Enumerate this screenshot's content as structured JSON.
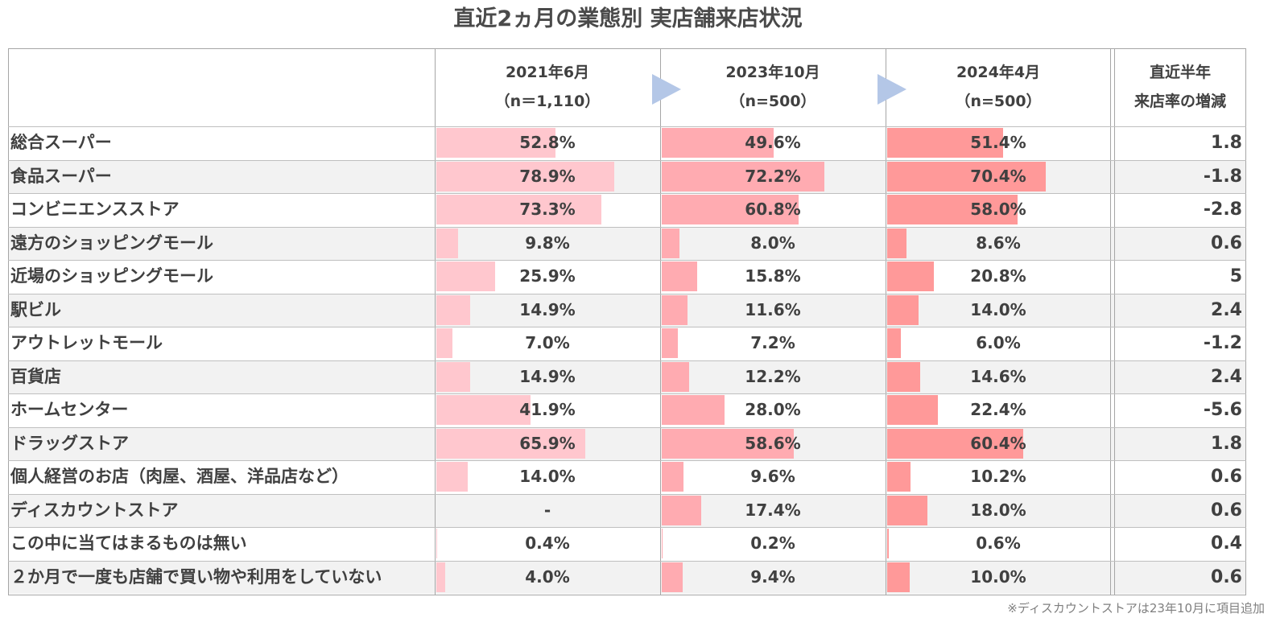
{
  "chart_data": {
    "type": "table",
    "title": "直近2ヵ月の業態別 実店舗来店状況",
    "columns": [
      {
        "name": "2021年6月",
        "sample": "（n＝1,110）"
      },
      {
        "name": "2023年10月",
        "sample": "（n=500）"
      },
      {
        "name": "2024年4月",
        "sample": "（n=500）"
      }
    ],
    "change_header": [
      "直近半年",
      "来店率の増減"
    ],
    "unit": "%",
    "bar_max": 100,
    "rows": [
      {
        "category": "総合スーパー",
        "values": [
          52.8,
          49.6,
          51.4
        ],
        "labels": [
          "52.8%",
          "49.6%",
          "51.4%"
        ],
        "change": "1.8"
      },
      {
        "category": "食品スーパー",
        "values": [
          78.9,
          72.2,
          70.4
        ],
        "labels": [
          "78.9%",
          "72.2%",
          "70.4%"
        ],
        "change": "-1.8"
      },
      {
        "category": "コンビニエンスストア",
        "values": [
          73.3,
          60.8,
          58.0
        ],
        "labels": [
          "73.3%",
          "60.8%",
          "58.0%"
        ],
        "change": "-2.8"
      },
      {
        "category": "遠方のショッピングモール",
        "values": [
          9.8,
          8.0,
          8.6
        ],
        "labels": [
          "9.8%",
          "8.0%",
          "8.6%"
        ],
        "change": "0.6"
      },
      {
        "category": "近場のショッピングモール",
        "values": [
          25.9,
          15.8,
          20.8
        ],
        "labels": [
          "25.9%",
          "15.8%",
          "20.8%"
        ],
        "change": "5"
      },
      {
        "category": "駅ビル",
        "values": [
          14.9,
          11.6,
          14.0
        ],
        "labels": [
          "14.9%",
          "11.6%",
          "14.0%"
        ],
        "change": "2.4"
      },
      {
        "category": "アウトレットモール",
        "values": [
          7.0,
          7.2,
          6.0
        ],
        "labels": [
          "7.0%",
          "7.2%",
          "6.0%"
        ],
        "change": "-1.2"
      },
      {
        "category": "百貨店",
        "values": [
          14.9,
          12.2,
          14.6
        ],
        "labels": [
          "14.9%",
          "12.2%",
          "14.6%"
        ],
        "change": "2.4"
      },
      {
        "category": "ホームセンター",
        "values": [
          41.9,
          28.0,
          22.4
        ],
        "labels": [
          "41.9%",
          "28.0%",
          "22.4%"
        ],
        "change": "-5.6"
      },
      {
        "category": "ドラッグストア",
        "values": [
          65.9,
          58.6,
          60.4
        ],
        "labels": [
          "65.9%",
          "58.6%",
          "60.4%"
        ],
        "change": "1.8"
      },
      {
        "category": "個人経営のお店（肉屋、酒屋、洋品店など）",
        "values": [
          14.0,
          9.6,
          10.2
        ],
        "labels": [
          "14.0%",
          "9.6%",
          "10.2%"
        ],
        "change": "0.6"
      },
      {
        "category": "ディスカウントストア",
        "values": [
          null,
          17.4,
          18.0
        ],
        "labels": [
          "-",
          "17.4%",
          "18.0%"
        ],
        "change": "0.6"
      },
      {
        "category": "この中に当てはまるものは無い",
        "values": [
          0.4,
          0.2,
          0.6
        ],
        "labels": [
          "0.4%",
          "0.2%",
          "0.6%"
        ],
        "change": "0.4"
      },
      {
        "category": "２か月で一度も店舗で買い物や利用をしていない",
        "values": [
          4.0,
          9.4,
          10.0
        ],
        "labels": [
          "4.0%",
          "9.4%",
          "10.0%"
        ],
        "change": "0.6"
      }
    ],
    "colors": [
      "#ffc7ce",
      "#ffabb1",
      "#ff9999"
    ],
    "arrow_color": "#b4c7e7",
    "note": "※ディスカウントストアは23年10月に項目追加"
  }
}
